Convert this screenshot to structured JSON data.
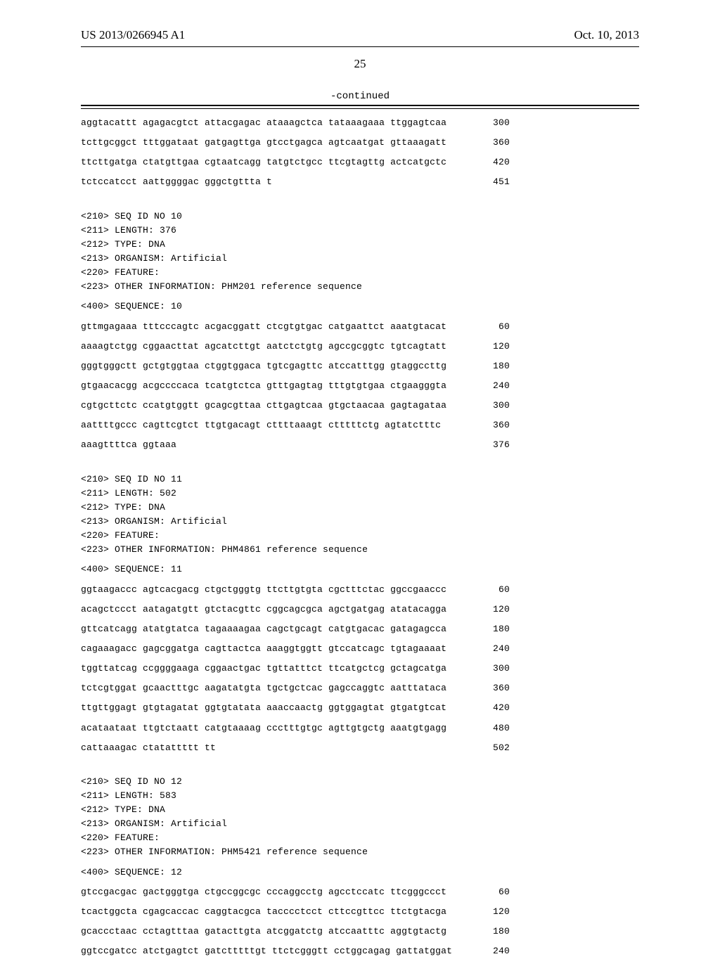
{
  "header": {
    "pub_id": "US 2013/0266945 A1",
    "pub_date": "Oct. 10, 2013",
    "page_number": "25",
    "continued_label": "-continued"
  },
  "blocks": [
    {
      "type": "seq_lines",
      "lines": [
        {
          "seq": "aggtacattt agagacgtct attacgagac ataaagctca tataaagaaa ttggagtcaa",
          "pos": "300"
        },
        {
          "seq": "tcttgcggct tttggataat gatgagttga gtcctgagca agtcaatgat gttaaagatt",
          "pos": "360"
        },
        {
          "seq": "ttcttgatga ctatgttgaa cgtaatcagg tatgtctgcc ttcgtagttg actcatgctc",
          "pos": "420"
        },
        {
          "seq": "tctccatcct aattggggac gggctgttta t",
          "pos": "451"
        }
      ]
    },
    {
      "type": "header_block",
      "lines": [
        "<210> SEQ ID NO 10",
        "<211> LENGTH: 376",
        "<212> TYPE: DNA",
        "<213> ORGANISM: Artificial",
        "<220> FEATURE:",
        "<223> OTHER INFORMATION: PHM201 reference sequence"
      ],
      "seq_label": "<400> SEQUENCE: 10"
    },
    {
      "type": "seq_lines",
      "lines": [
        {
          "seq": "gttmgagaaa tttcccagtc acgacggatt ctcgtgtgac catgaattct aaatgtacat",
          "pos": "60"
        },
        {
          "seq": "aaaagtctgg cggaacttat agcatcttgt aatctctgtg agccgcggtc tgtcagtatt",
          "pos": "120"
        },
        {
          "seq": "gggtgggctt gctgtggtaa ctggtggaca tgtcgagttc atccatttgg gtaggccttg",
          "pos": "180"
        },
        {
          "seq": "gtgaacacgg acgccccaca tcatgtctca gtttgagtag tttgtgtgaa ctgaagggta",
          "pos": "240"
        },
        {
          "seq": "cgtgcttctc ccatgtggtt gcagcgttaa cttgagtcaa gtgctaacaa gagtagataa",
          "pos": "300"
        },
        {
          "seq": "aattttgccc cagttcgtct ttgtgacagt cttttaaagt ctttttctg agtatctttc",
          "pos": "360"
        },
        {
          "seq": "aaagttttca ggtaaa",
          "pos": "376"
        }
      ]
    },
    {
      "type": "header_block",
      "lines": [
        "<210> SEQ ID NO 11",
        "<211> LENGTH: 502",
        "<212> TYPE: DNA",
        "<213> ORGANISM: Artificial",
        "<220> FEATURE:",
        "<223> OTHER INFORMATION: PHM4861 reference sequence"
      ],
      "seq_label": "<400> SEQUENCE: 11"
    },
    {
      "type": "seq_lines",
      "lines": [
        {
          "seq": "ggtaagaccc agtcacgacg ctgctgggtg ttcttgtgta cgctttctac ggccgaaccc",
          "pos": "60"
        },
        {
          "seq": "acagctccct aatagatgtt gtctacgttc cggcagcgca agctgatgag atatacagga",
          "pos": "120"
        },
        {
          "seq": "gttcatcagg atatgtatca tagaaaagaa cagctgcagt catgtgacac gatagagcca",
          "pos": "180"
        },
        {
          "seq": "cagaaagacc gagcggatga cagttactca aaaggtggtt gtccatcagc tgtagaaaat",
          "pos": "240"
        },
        {
          "seq": "tggttatcag ccggggaaga cggaactgac tgttatttct ttcatgctcg gctagcatga",
          "pos": "300"
        },
        {
          "seq": "tctcgtggat gcaactttgc aagatatgta tgctgctcac gagccaggtc aatttataca",
          "pos": "360"
        },
        {
          "seq": "ttgttggagt gtgtagatat ggtgtatata aaaccaactg ggtggagtat gtgatgtcat",
          "pos": "420"
        },
        {
          "seq": "acataataat ttgtctaatt catgtaaaag ccctttgtgc agttgtgctg aaatgtgagg",
          "pos": "480"
        },
        {
          "seq": "cattaaagac ctatattttt tt",
          "pos": "502"
        }
      ]
    },
    {
      "type": "header_block",
      "lines": [
        "<210> SEQ ID NO 12",
        "<211> LENGTH: 583",
        "<212> TYPE: DNA",
        "<213> ORGANISM: Artificial",
        "<220> FEATURE:",
        "<223> OTHER INFORMATION: PHM5421 reference sequence"
      ],
      "seq_label": "<400> SEQUENCE: 12"
    },
    {
      "type": "seq_lines",
      "lines": [
        {
          "seq": "gtccgacgac gactgggtga ctgccggcgc cccaggcctg agcctccatc ttcgggccct",
          "pos": "60"
        },
        {
          "seq": "tcactggcta cgagcaccac caggtacgca tacccctcct cttccgttcc ttctgtacga",
          "pos": "120"
        },
        {
          "seq": "gcaccctaac cctagtttaa gatacttgta atcggatctg atccaatttc aggtgtactg",
          "pos": "180"
        },
        {
          "seq": "ggtccgatcc atctgagtct gatctttttgt ttctcgggtt cctggcagag gattatggat",
          "pos": "240"
        }
      ]
    }
  ]
}
